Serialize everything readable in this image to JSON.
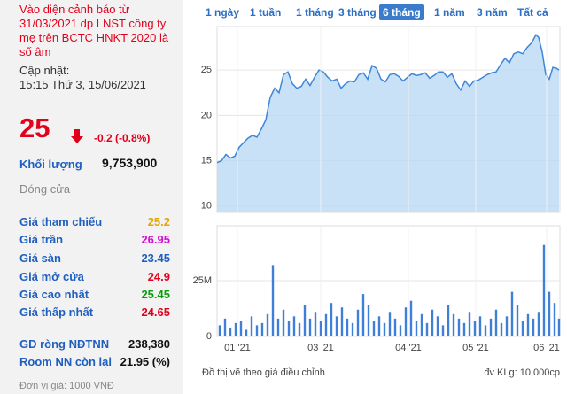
{
  "warning": "Vào diện cảnh báo từ 31/03/2021 dp LNST công ty mẹ trên BCTC HNKT 2020 là số âm",
  "updated_label": "Cập nhật:",
  "updated_time": "15:15 Thứ 3, 15/06/2021",
  "price": "25",
  "change": "-0.2 (-0.8%)",
  "volume_label": "Khối lượng",
  "volume": "9,753,900",
  "status": "Đóng cửa",
  "price_rows": [
    {
      "label": "Giá tham chiếu",
      "value": "25.2",
      "color": "#e6a400"
    },
    {
      "label": "Giá trần",
      "value": "26.95",
      "color": "#d10fd1"
    },
    {
      "label": "Giá sàn",
      "value": "23.45",
      "color": "#1f5fbf"
    },
    {
      "label": "Giá mở cửa",
      "value": "24.9",
      "color": "#e3001b"
    },
    {
      "label": "Giá cao nhất",
      "value": "25.45",
      "color": "#0a9e0a"
    },
    {
      "label": "Giá thấp nhất",
      "value": "24.65",
      "color": "#e3001b"
    }
  ],
  "foreign_rows": [
    {
      "label": "GD ròng NĐTNN",
      "value": "238,380"
    },
    {
      "label": "Room NN còn lại",
      "value": "21.95 (%)"
    }
  ],
  "unit_note": "Đơn vị giá: 1000 VNĐ",
  "tabs": [
    "1 ngày",
    "1 tuần",
    "1 tháng",
    "3 tháng",
    "6 tháng",
    "1 năm",
    "3 năm",
    "Tất cả"
  ],
  "active_tab": 4,
  "footer_left": "Đồ thị vẽ theo giá điều chỉnh",
  "footer_right": "đv KLg: 10,000cp",
  "chart_data": [
    {
      "type": "area",
      "color": "#3d86d8",
      "fill": "#bcd9f5",
      "xlim": [
        0,
        387
      ],
      "x": [
        0,
        5,
        10,
        15,
        20,
        25,
        30,
        35,
        40,
        45,
        50,
        55,
        60,
        65,
        70,
        75,
        80,
        85,
        90,
        95,
        100,
        105,
        110,
        115,
        120,
        125,
        130,
        135,
        140,
        145,
        150,
        155,
        160,
        165,
        170,
        175,
        180,
        185,
        190,
        195,
        200,
        205,
        210,
        215,
        220,
        225,
        230,
        235,
        240,
        245,
        250,
        255,
        260,
        265,
        270,
        275,
        280,
        285,
        290,
        295,
        300,
        305,
        310,
        315,
        320,
        325,
        330,
        335,
        340,
        345,
        350,
        355,
        360,
        363,
        367,
        371,
        375,
        379,
        383,
        386
      ],
      "values": [
        14.8,
        15.0,
        15.7,
        15.3,
        15.5,
        16.5,
        17.0,
        17.5,
        17.8,
        17.6,
        18.5,
        19.5,
        22.0,
        23.0,
        22.5,
        24.5,
        24.8,
        23.5,
        23.0,
        23.2,
        24.0,
        23.3,
        24.2,
        25.0,
        24.8,
        24.2,
        23.8,
        24.0,
        23.0,
        23.5,
        23.8,
        23.7,
        24.5,
        24.7,
        24.0,
        25.5,
        25.2,
        24.0,
        23.7,
        24.5,
        24.6,
        24.3,
        23.8,
        24.2,
        24.6,
        24.4,
        24.5,
        24.7,
        24.1,
        24.4,
        24.8,
        24.8,
        24.2,
        24.6,
        23.5,
        22.8,
        23.8,
        23.2,
        23.8,
        23.9,
        24.2,
        24.5,
        24.7,
        24.8,
        25.6,
        26.3,
        25.8,
        26.8,
        27.0,
        26.8,
        27.5,
        28.0,
        28.9,
        28.6,
        27.0,
        24.5,
        24.0,
        25.3,
        25.2,
        25.0
      ],
      "ylim": [
        9.3,
        29.8
      ],
      "yticks": [
        10,
        15,
        20,
        25
      ],
      "grid": true
    },
    {
      "type": "bar",
      "color": "#3f7fd8",
      "xlim": [
        0,
        387
      ],
      "x": [
        3,
        9,
        15,
        21,
        27,
        33,
        39,
        45,
        51,
        57,
        63,
        69,
        75,
        81,
        87,
        93,
        99,
        105,
        111,
        117,
        123,
        129,
        135,
        141,
        147,
        153,
        159,
        165,
        171,
        177,
        183,
        189,
        195,
        201,
        207,
        213,
        219,
        225,
        231,
        237,
        243,
        249,
        255,
        261,
        267,
        273,
        279,
        285,
        291,
        297,
        303,
        309,
        315,
        321,
        327,
        333,
        339,
        345,
        351,
        357,
        363,
        369,
        375,
        381,
        386
      ],
      "values": [
        5,
        8,
        4,
        6,
        7,
        3,
        9,
        5,
        6,
        10,
        32,
        8,
        12,
        7,
        9,
        6,
        14,
        8,
        11,
        7,
        10,
        15,
        9,
        13,
        8,
        6,
        12,
        19,
        14,
        7,
        9,
        6,
        11,
        8,
        5,
        13,
        16,
        7,
        10,
        6,
        12,
        9,
        5,
        14,
        10,
        8,
        6,
        11,
        7,
        9,
        5,
        8,
        12,
        6,
        9,
        20,
        14,
        7,
        10,
        8,
        11,
        41,
        20,
        15,
        8
      ],
      "ylim": [
        0,
        49.6
      ],
      "yticks": [
        0,
        {
          "value": 25,
          "label": "25M"
        }
      ],
      "xticks": [
        {
          "value": 23,
          "label": "01 '21"
        },
        {
          "value": 117,
          "label": "03 '21"
        },
        {
          "value": 216,
          "label": "04 '21"
        },
        {
          "value": 292,
          "label": "05 '21"
        },
        {
          "value": 372,
          "label": "06 '21"
        }
      ],
      "grid": true
    }
  ]
}
